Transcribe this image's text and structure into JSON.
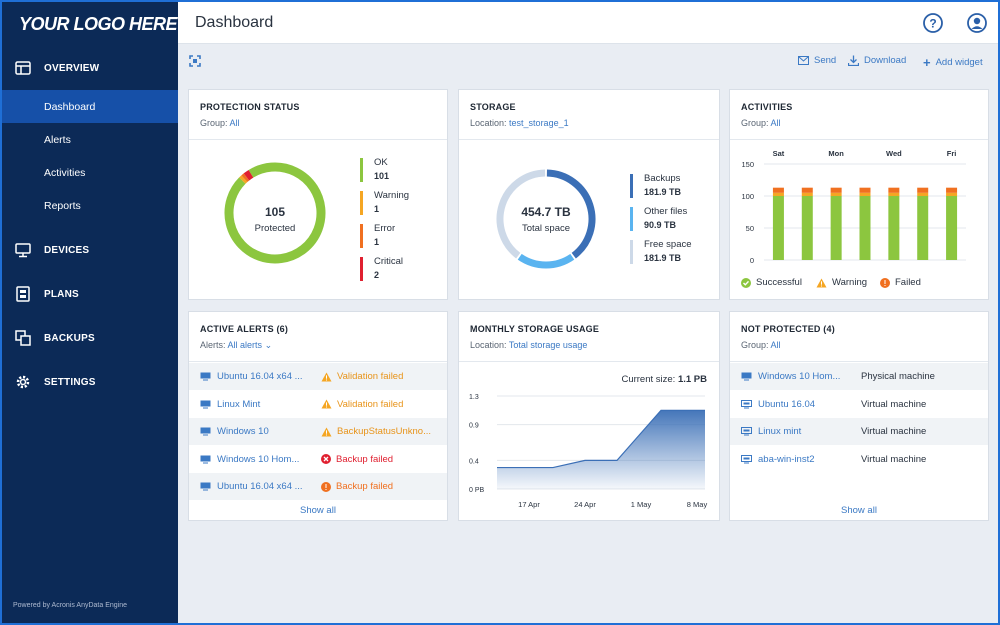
{
  "sidebar": {
    "logo": "YOUR LOGO HERE",
    "overview": "OVERVIEW",
    "sub_items": [
      "Dashboard",
      "Alerts",
      "Activities",
      "Reports"
    ],
    "devices": "DEVICES",
    "plans": "PLANS",
    "backups": "BACKUPS",
    "settings": "SETTINGS",
    "powered": "Powered by Acronis AnyData Engine"
  },
  "header": {
    "title": "Dashboard",
    "help_icon": "help-icon",
    "user_icon": "user-icon"
  },
  "toolbar": {
    "send": "Send",
    "download": "Download",
    "add_widget": "Add widget"
  },
  "protection": {
    "title": "PROTECTION STATUS",
    "group_label": "Group:",
    "group_value": "All",
    "total": "105",
    "total_label": "Protected",
    "items": [
      {
        "label": "OK",
        "value": "101",
        "color": "#8cc63f"
      },
      {
        "label": "Warning",
        "value": "1",
        "color": "#f5a623"
      },
      {
        "label": "Error",
        "value": "1",
        "color": "#f07020"
      },
      {
        "label": "Critical",
        "value": "2",
        "color": "#e02030"
      }
    ]
  },
  "storage": {
    "title": "STORAGE",
    "location_label": "Location:",
    "location_value": "test_storage_1",
    "total": "454.7 TB",
    "total_label": "Total space",
    "items": [
      {
        "label": "Backups",
        "value": "181.9 TB",
        "color": "#3b6fb6"
      },
      {
        "label": "Other files",
        "value": "90.9 TB",
        "color": "#5ab4f0"
      },
      {
        "label": "Free space",
        "value": "181.9 TB",
        "color": "#cdd9e8"
      }
    ]
  },
  "activities": {
    "title": "ACTIVITIES",
    "group_label": "Group:",
    "group_value": "All",
    "legend": {
      "successful": "Successful",
      "warning": "Warning",
      "failed": "Failed"
    }
  },
  "alerts": {
    "title": "ACTIVE ALERTS (6)",
    "filter_label": "Alerts:",
    "filter_value": "All alerts",
    "rows": [
      {
        "device": "Ubuntu 16.04 x64 ...",
        "status": "Validation failed",
        "level": "warning"
      },
      {
        "device": "Linux Mint",
        "status": "Validation failed",
        "level": "warning"
      },
      {
        "device": "Windows 10",
        "status": "BackupStatusUnkno...",
        "level": "warning"
      },
      {
        "device": "Windows 10 Hom...",
        "status": "Backup failed",
        "level": "critical"
      },
      {
        "device": "Ubuntu 16.04 x64 ...",
        "status": "Backup failed",
        "level": "error"
      }
    ],
    "show_all": "Show all"
  },
  "monthly": {
    "title": "MONTHLY STORAGE USAGE",
    "location_label": "Location:",
    "location_value": "Total storage usage",
    "current_label": "Current size:",
    "current_value": "1.1 PB"
  },
  "not_protected": {
    "title": "NOT PROTECTED (4)",
    "group_label": "Group:",
    "group_value": "All",
    "rows": [
      {
        "device": "Windows 10 Hom...",
        "type": "Physical machine"
      },
      {
        "device": "Ubuntu 16.04",
        "type": "Virtual machine"
      },
      {
        "device": "Linux mint",
        "type": "Virtual machine"
      },
      {
        "device": "aba-win-inst2",
        "type": "Virtual machine"
      }
    ],
    "show_all": "Show all"
  },
  "chart_data": [
    {
      "type": "pie",
      "title": "PROTECTION STATUS",
      "categories": [
        "OK",
        "Warning",
        "Error",
        "Critical"
      ],
      "values": [
        101,
        1,
        1,
        2
      ]
    },
    {
      "type": "pie",
      "title": "STORAGE",
      "categories": [
        "Backups",
        "Other files",
        "Free space"
      ],
      "values": [
        181.9,
        90.9,
        181.9
      ]
    },
    {
      "type": "bar",
      "title": "ACTIVITIES",
      "categories": [
        "Sat",
        "",
        "Mon",
        "",
        "Wed",
        "",
        "Fri"
      ],
      "yticks": [
        0,
        50,
        100,
        150
      ],
      "ylim": [
        0,
        150
      ],
      "series": [
        {
          "name": "Successful",
          "values": [
            100,
            100,
            100,
            100,
            100,
            100,
            100
          ],
          "color": "#8cc63f"
        },
        {
          "name": "Warning",
          "values": [
            5,
            5,
            5,
            5,
            5,
            5,
            5
          ],
          "color": "#f5a623"
        },
        {
          "name": "Failed",
          "values": [
            8,
            8,
            8,
            8,
            8,
            8,
            8
          ],
          "color": "#f07020"
        }
      ]
    },
    {
      "type": "area",
      "title": "MONTHLY STORAGE USAGE",
      "xticks": [
        "17 Apr",
        "24 Apr",
        "1 May",
        "8 May"
      ],
      "yticks": [
        "0 PB",
        "0.4",
        "0.9",
        "1.3"
      ],
      "ylim": [
        0,
        1.3
      ],
      "x": [
        0,
        5,
        7,
        11,
        12,
        15,
        20.5,
        26
      ],
      "y": [
        0.3,
        0.3,
        0.3,
        0.4,
        0.4,
        0.4,
        1.1,
        1.1
      ]
    }
  ]
}
